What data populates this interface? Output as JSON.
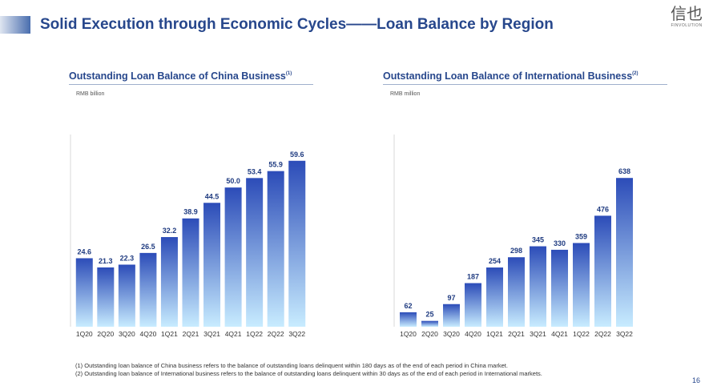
{
  "header": {
    "title": "Solid Execution through Economic Cycles——Loan Balance by Region"
  },
  "logo": {
    "mark": "信也",
    "subtext": "FINVOLUTION"
  },
  "colors": {
    "title": "#27478c",
    "bar_top": "#2c4cb8",
    "bar_bottom": "#c8ecff",
    "label": "#1f3b80"
  },
  "charts": {
    "china": {
      "title": "Outstanding Loan Balance of China Business",
      "note_ref": "(1)",
      "unit": "RMB billion"
    },
    "international": {
      "title": "Outstanding Loan Balance of International Business",
      "note_ref": "(2)",
      "unit": "RMB million"
    }
  },
  "chart_data": [
    {
      "type": "bar",
      "title": "Outstanding Loan Balance of China Business",
      "ylabel": "RMB billion",
      "categories": [
        "1Q20",
        "2Q20",
        "3Q20",
        "4Q20",
        "1Q21",
        "2Q21",
        "3Q21",
        "4Q21",
        "1Q22",
        "2Q22",
        "3Q22"
      ],
      "values": [
        24.6,
        21.3,
        22.3,
        26.5,
        32.2,
        38.9,
        44.5,
        50.0,
        53.4,
        55.9,
        59.6
      ],
      "labels": [
        "24.6",
        "21.3",
        "22.3",
        "26.5",
        "32.2",
        "38.9",
        "44.5",
        "50.0",
        "53.4",
        "55.9",
        "59.6"
      ],
      "ylim": [
        0,
        65
      ],
      "grid": false,
      "legend": "none"
    },
    {
      "type": "bar",
      "title": "Outstanding Loan Balance of International Business",
      "ylabel": "RMB million",
      "categories": [
        "1Q20",
        "2Q20",
        "3Q20",
        "4Q20",
        "1Q21",
        "2Q21",
        "3Q21",
        "4Q21",
        "1Q22",
        "2Q22",
        "3Q22"
      ],
      "values": [
        62,
        25,
        97,
        187,
        254,
        298,
        345,
        330,
        359,
        476,
        638
      ],
      "labels": [
        "62",
        "25",
        "97",
        "187",
        "254",
        "298",
        "345",
        "330",
        "359",
        "476",
        "638"
      ],
      "ylim": [
        0,
        680
      ],
      "grid": false,
      "legend": "none"
    }
  ],
  "footnotes": [
    "(1) Outstanding loan balance of China business refers to the balance of outstanding loans delinquent within 180 days as of the end of each period in China market.",
    "(2) Outstanding loan balance of International business refers to the balance of outstanding loans delinquent within 30 days as of the end of each period in International markets."
  ],
  "page_number": "16"
}
